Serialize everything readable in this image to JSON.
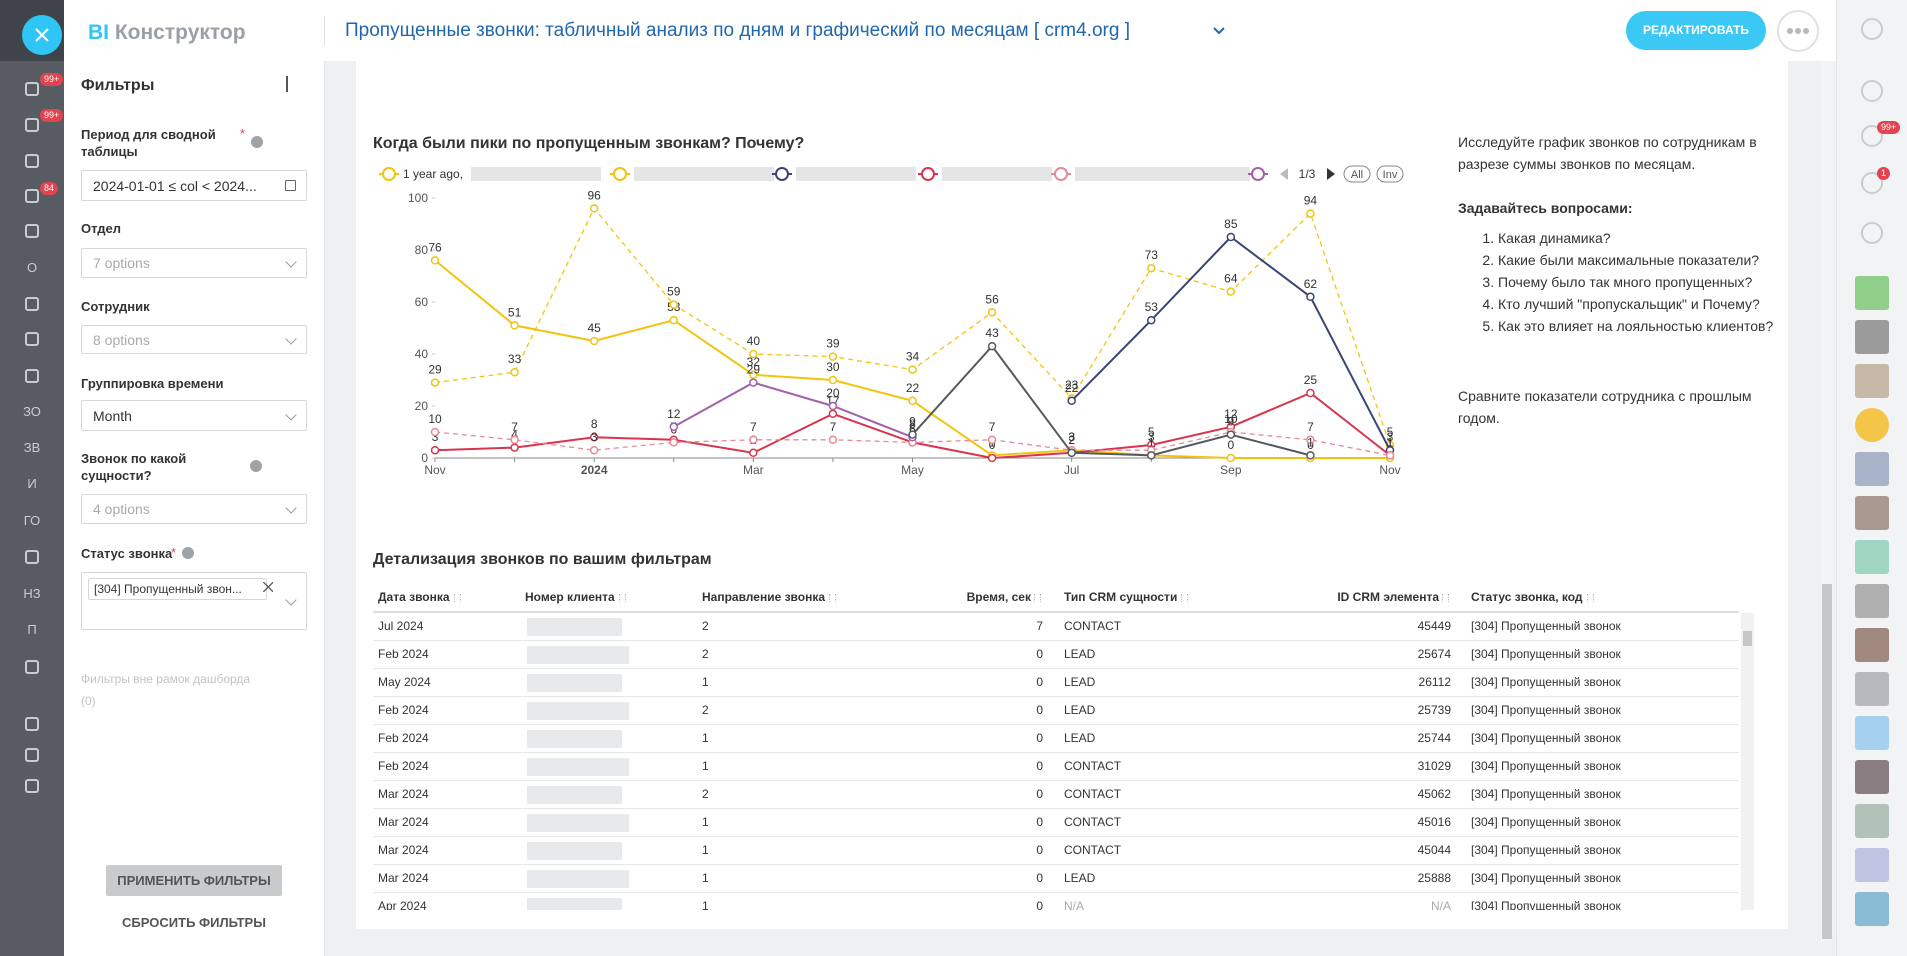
{
  "app": {
    "logo_bi": "BI",
    "logo_name": "Конструктор"
  },
  "header": {
    "title": "Пропущенные звонки: табличный анализ по дням и графический по месяцам [ crm4.org ]",
    "edit_button": "РЕДАКТИРОВАТЬ"
  },
  "left_rail": {
    "badges": [
      "99+",
      "99+",
      "84"
    ],
    "items": [
      "О",
      "ЗО",
      "ЗВ",
      "И",
      "ГО",
      "НЗ",
      "П"
    ]
  },
  "right_rail": {
    "badges": [
      "99+",
      "1"
    ]
  },
  "filters": {
    "title": "Фильтры",
    "required_mark": "*",
    "fields": [
      {
        "label": "Период для сводной таблицы",
        "value": "2024-01-01 ≤ col < 2024...",
        "required": true,
        "info": true
      },
      {
        "label": "Отдел",
        "value": "7 options",
        "placeholder": true
      },
      {
        "label": "Сотрудник",
        "value": "8 options",
        "placeholder": true
      },
      {
        "label": "Группировка времени",
        "value": "Month"
      },
      {
        "label": "Звонок по какой сущности?",
        "value": "4 options",
        "placeholder": true,
        "info": true
      },
      {
        "label": "Статус звонка",
        "value": "[304] Пропущенный звон...",
        "required": true,
        "info": true,
        "tag": true
      }
    ],
    "outside_label": "Фильтры вне рамок дашборда",
    "outside_count": "(0)",
    "apply": "ПРИМЕНИТЬ ФИЛЬТРЫ",
    "reset": "СБРОСИТЬ ФИЛЬТРЫ"
  },
  "chart_data": {
    "type": "line",
    "title": "Когда были пики по пропущенным звонкам? Почему?",
    "categories": [
      "Nov",
      null,
      "2024",
      null,
      "Mar",
      null,
      "May",
      null,
      "Jul",
      null,
      "Sep",
      null,
      "Nov"
    ],
    "ylim": [
      0,
      100
    ],
    "yticks": [
      0,
      20,
      40,
      60,
      80,
      100
    ],
    "grid": false,
    "legend_page": "1/3",
    "legend_buttons": [
      "All",
      "Inv"
    ],
    "series": [
      {
        "name": "1 year ago,",
        "color": "#f2c40f",
        "values": [
          76,
          51,
          45,
          53,
          32,
          30,
          22,
          1,
          3,
          1,
          0,
          0,
          0
        ]
      },
      {
        "color": "#f2c40f",
        "dashed": true,
        "values": [
          29,
          33,
          96,
          59,
          40,
          39,
          34,
          56,
          23,
          73,
          64,
          94,
          5
        ]
      },
      {
        "color": "#3b4477",
        "values": [
          null,
          null,
          null,
          null,
          null,
          null,
          null,
          null,
          22,
          53,
          85,
          62,
          3
        ]
      },
      {
        "color": "#d8344d",
        "values": [
          3,
          4,
          8,
          7,
          2,
          17,
          6,
          0,
          2,
          5,
          12,
          25,
          1
        ]
      },
      {
        "color": "#e58a98",
        "dashed": true,
        "values": [
          10,
          7,
          3,
          6,
          7,
          7,
          6,
          7,
          3,
          3,
          10,
          7,
          1
        ]
      },
      {
        "color": "#a260ad",
        "values": [
          null,
          null,
          null,
          12,
          29,
          20,
          8,
          null,
          null,
          null,
          null,
          null,
          null
        ]
      },
      {
        "color": "#555a60",
        "values": [
          null,
          null,
          null,
          null,
          null,
          null,
          9,
          43,
          2,
          1,
          9,
          1,
          null
        ]
      }
    ]
  },
  "notes": {
    "intro": "Исследуйте график звонков по сотрудникам в разрезе суммы звонков по месяцам.",
    "questions_title": "Задавайтесь вопросами:",
    "questions": [
      "Какая динамика?",
      "Какие были максимальные показатели?",
      "Почему было так много пропущенных?",
      "Кто лучший \"пропускальщик\" и Почему?",
      "Как это влияет на лояльностью клиентов?"
    ],
    "outro": "Сравните показатели сотрудника с прошлым годом."
  },
  "table": {
    "title": "Детализация звонков по вашим фильтрам",
    "columns": [
      "Дата звонка",
      "Номер клиента",
      "Направление звонка",
      "Время, сек",
      "Тип CRM сущности",
      "ID CRM элемента",
      "Статус звонка, код"
    ],
    "rows": [
      [
        "Jul 2024",
        2,
        7,
        "CONTACT",
        45449,
        "[304] Пропущенный звонок"
      ],
      [
        "Feb 2024",
        2,
        0,
        "LEAD",
        25674,
        "[304] Пропущенный звонок"
      ],
      [
        "May 2024",
        1,
        0,
        "LEAD",
        26112,
        "[304] Пропущенный звонок"
      ],
      [
        "Feb 2024",
        2,
        0,
        "LEAD",
        25739,
        "[304] Пропущенный звонок"
      ],
      [
        "Feb 2024",
        1,
        0,
        "LEAD",
        25744,
        "[304] Пропущенный звонок"
      ],
      [
        "Feb 2024",
        1,
        0,
        "CONTACT",
        31029,
        "[304] Пропущенный звонок"
      ],
      [
        "Mar 2024",
        2,
        0,
        "CONTACT",
        45062,
        "[304] Пропущенный звонок"
      ],
      [
        "Mar 2024",
        1,
        0,
        "CONTACT",
        45016,
        "[304] Пропущенный звонок"
      ],
      [
        "Mar 2024",
        1,
        0,
        "CONTACT",
        45044,
        "[304] Пропущенный звонок"
      ],
      [
        "Mar 2024",
        1,
        0,
        "LEAD",
        25888,
        "[304] Пропущенный звонок"
      ],
      [
        "Apr 2024",
        1,
        0,
        "N/A",
        "N/A",
        "[304] Пропущенный звонок"
      ]
    ]
  }
}
